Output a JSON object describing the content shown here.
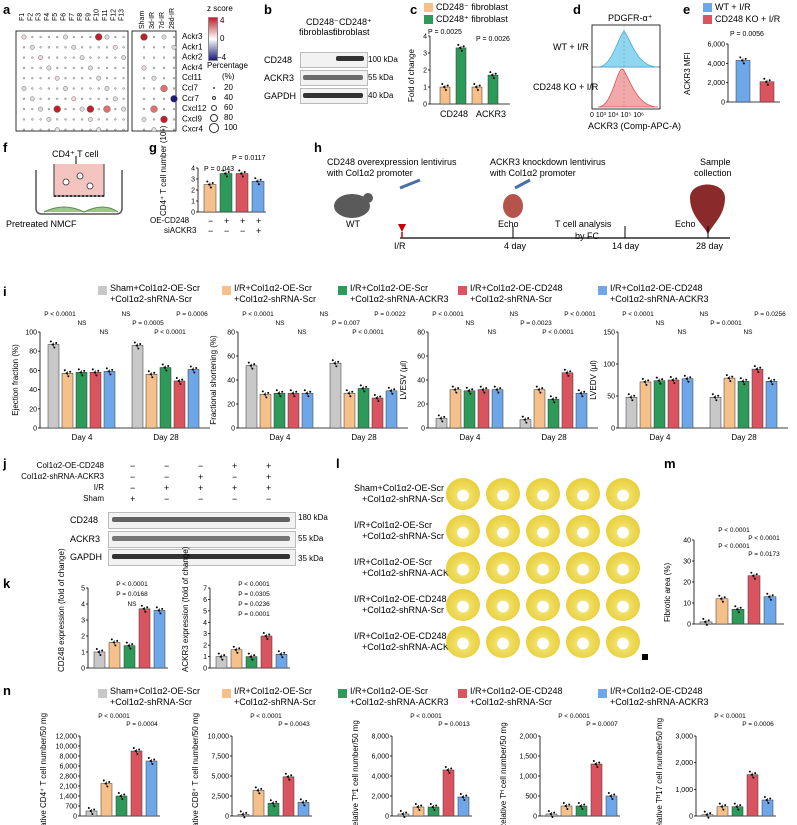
{
  "colors": {
    "grey": "#c8c8c8",
    "orange": "#f5c08a",
    "green": "#2e9a5a",
    "red": "#d9545f",
    "blue": "#6ea7e8"
  },
  "panels": {
    "a": "a",
    "b": "b",
    "c": "c",
    "d": "d",
    "e": "e",
    "f": "f",
    "g": "g",
    "h": "h",
    "i": "i",
    "j": "j",
    "k": "k",
    "l": "l",
    "m": "m",
    "n": "n"
  },
  "a": {
    "columns_left": [
      "F1",
      "F2",
      "F3",
      "F4",
      "F5",
      "F6",
      "F7",
      "F8",
      "F9",
      "F10",
      "F11",
      "F12",
      "F13"
    ],
    "columns_right": [
      "Sham",
      "3d-IR",
      "7d-IR",
      "28d-IR"
    ],
    "rows": [
      "Ackr3",
      "Ackr1",
      "Ackr2",
      "Ackr4",
      "Ccl11",
      "Ccl7",
      "Ccr7",
      "Cxcl12",
      "Cxcl9",
      "Cxcr4"
    ],
    "zscore_title": "z score",
    "zscore_max": "4",
    "zscore_mid": "0",
    "zscore_min": "−4",
    "pct_title": "Percentage",
    "pct_unit": "(%)",
    "pct_values": [
      "20",
      "40",
      "60",
      "80",
      "100"
    ]
  },
  "b": {
    "col1": "CD248⁻",
    "col1b": "fibroblast",
    "col2": "CD248⁺",
    "col2b": "fibroblast",
    "rows": [
      "CD248",
      "ACKR3",
      "GAPDH"
    ],
    "kda": [
      "100 kDa",
      "55 kDa",
      "40 kDa"
    ]
  },
  "c": {
    "legend1": "CD248⁻ fibroblast",
    "legend2": "CD248⁺ fibroblast",
    "ylabel": "Fold of change",
    "yticks": [
      "0",
      "1",
      "2",
      "3",
      "4"
    ],
    "xcats": [
      "CD248",
      "ACKR3"
    ],
    "p1": "P = 0.0025",
    "p2": "P = 0.0026",
    "chart_data": {
      "type": "bar",
      "categories": [
        "CD248",
        "ACKR3"
      ],
      "series": [
        {
          "name": "CD248⁻ fibroblast",
          "values": [
            1.0,
            1.0
          ]
        },
        {
          "name": "CD248⁺ fibroblast",
          "values": [
            3.3,
            1.7
          ]
        }
      ],
      "ylim": [
        0,
        4
      ],
      "ylabel": "Fold of change"
    }
  },
  "d": {
    "title": "PDGFR-α⁺",
    "row1": "WT + I/R",
    "row2": "CD248 KO + I/R",
    "xlabel": "ACKR3 (Comp-APC-A)",
    "xticks": "0 10³ 10⁴ 10⁵ 10⁶"
  },
  "e": {
    "legend1": "WT + I/R",
    "legend2": "CD248 KO + I/R",
    "ylabel": "ACKR3 MFI",
    "yticks": [
      "0",
      "2,000",
      "4,000",
      "6,000"
    ],
    "p": "P = 0.0056",
    "chart_data": {
      "type": "bar",
      "categories": [
        "WT + I/R",
        "CD248 KO + I/R"
      ],
      "values": [
        4300,
        2100
      ],
      "ylim": [
        0,
        6000
      ]
    }
  },
  "f": {
    "title": "CD4⁺ T cell",
    "label": "Pretreated NMCF"
  },
  "g": {
    "ylabel": "CD4⁺ T cell number (10⁵)",
    "yticks": [
      "0",
      "1",
      "2",
      "3",
      "4"
    ],
    "p1": "P = 0.043",
    "p2": "P = 0.0117",
    "row1_label": "OE-CD248",
    "row2_label": "siACKR3",
    "row1": [
      "−",
      "+",
      "+",
      "+"
    ],
    "row2": [
      "−",
      "−",
      "−",
      "+"
    ],
    "chart_data": {
      "type": "bar",
      "categories": [
        "ctrl",
        "OE-CD248",
        "OE-CD248",
        "OE-CD248+siACKR3"
      ],
      "values": [
        2.5,
        3.5,
        3.5,
        2.8
      ],
      "ylim": [
        0,
        4
      ]
    }
  },
  "h": {
    "t1": "CD248 overexpression lentivirus",
    "t1b": "with Col1α2 promoter",
    "t2": "ACKR3 knockdown lentivirus",
    "t2b": "with Col1α2 promoter",
    "t3": "Sample",
    "t3b": "collection",
    "wt": "WT",
    "ir": "I/R",
    "echo1": "Echo",
    "d4": "4 day",
    "tcell": "T cell analysis",
    "byfc": "by FC",
    "d14": "14 day",
    "echo2": "Echo",
    "d28": "28 day"
  },
  "legend": [
    "Sham+Col1α2-OE-Scr +Col1α2-shRNA-Scr",
    "I/R+Col1α2-OE-Scr +Col1α2-shRNA-Scr",
    "I/R+Col1α2-OE-Scr +Col1α2-shRNA-ACKR3",
    "I/R+Col1α2-OE-CD248 +Col1α2-shRNA-Scr",
    "I/R+Col1α2-OE-CD248 +Col1α2-shRNA-ACKR3"
  ],
  "legend_l1": [
    "Sham+Col1α2-OE-Scr",
    "I/R+Col1α2-OE-Scr",
    "I/R+Col1α2-OE-Scr",
    "I/R+Col1α2-OE-CD248",
    "I/R+Col1α2-OE-CD248"
  ],
  "legend_l2": [
    "+Col1α2-shRNA-Scr",
    "+Col1α2-shRNA-Scr",
    "+Col1α2-shRNA-ACKR3",
    "+Col1α2-shRNA-Scr",
    "+Col1α2-shRNA-ACKR3"
  ],
  "i": {
    "days": [
      "Day 4",
      "Day 28"
    ],
    "ef": {
      "ylabel": "Ejection fraction (%)",
      "yticks": [
        "0",
        "20",
        "40",
        "60",
        "80",
        "100"
      ],
      "ylim": [
        0,
        100
      ],
      "d4": [
        87,
        57,
        58,
        58,
        59
      ],
      "d28": [
        86,
        56,
        63,
        49,
        61
      ],
      "pv": [
        "P < 0.0001",
        "NS",
        "NS",
        "NS",
        "P = 0.0005",
        "P < 0.0001",
        "P = 0.0006"
      ]
    },
    "fs": {
      "ylabel": "Fractional shortening (%)",
      "yticks": [
        "0",
        "20",
        "40",
        "60",
        "80"
      ],
      "ylim": [
        0,
        80
      ],
      "d4": [
        52,
        28,
        29,
        29,
        29
      ],
      "d28": [
        54,
        29,
        33,
        25,
        31
      ],
      "pv": [
        "P < 0.0001",
        "NS",
        "NS",
        "NS",
        "P = 0.007",
        "P < 0.0001",
        "P = 0.0022"
      ]
    },
    "esv": {
      "ylabel": "LVESV (μl)",
      "yticks": [
        "0",
        "20",
        "40",
        "60",
        "80"
      ],
      "ylim": [
        0,
        80
      ],
      "d4": [
        8,
        32,
        31,
        32,
        32
      ],
      "d28": [
        7,
        32,
        24,
        46,
        29
      ],
      "pv": [
        "P < 0.0001",
        "NS",
        "NS",
        "NS",
        "P = 0.0023",
        "P < 0.0001",
        "P < 0.0001"
      ]
    },
    "edv": {
      "ylabel": "LVEDV (μl)",
      "yticks": [
        "0",
        "50",
        "100",
        "150"
      ],
      "ylim": [
        0,
        150
      ],
      "d4": [
        48,
        72,
        74,
        75,
        77
      ],
      "d28": [
        48,
        78,
        73,
        92,
        73
      ],
      "pv": [
        "P < 0.0001",
        "NS",
        "NS",
        "NS",
        "P = 0.0001",
        "NS",
        "P = 0.0256"
      ]
    }
  },
  "j": {
    "rows_top": [
      "Col1α2-OE-CD248",
      "Col1α2-shRNA-ACKR3",
      "I/R",
      "Sham"
    ],
    "signs": [
      [
        "−",
        "−",
        "−",
        "+",
        "+"
      ],
      [
        "−",
        "−",
        "+",
        "−",
        "+"
      ],
      [
        "−",
        "+",
        "+",
        "+",
        "+"
      ],
      [
        "+",
        "−",
        "−",
        "−",
        "−"
      ]
    ],
    "rows": [
      "CD248",
      "ACKR3",
      "GAPDH"
    ],
    "kda": [
      "180 kDa",
      "55 kDa",
      "35 kDa"
    ]
  },
  "k": {
    "ylabel1": "CD248 expression (fold of change)",
    "ylabel2": "ACKR3 expression (fold of change)",
    "yticks": [
      "0",
      "1",
      "2",
      "3",
      "4",
      "5"
    ],
    "yticks2": [
      "0",
      "1",
      "2",
      "3",
      "4",
      "5",
      "6",
      "7"
    ],
    "p1": [
      "P < 0.0001",
      "P = 0.0168",
      "NS"
    ],
    "p2": [
      "P < 0.0001",
      "P = 0.0305",
      "P = 0.0236",
      "P = 0.0001"
    ],
    "chart_data": [
      {
        "type": "bar",
        "categories": [
          "Sham",
          "I/R Scr",
          "shACKR3",
          "OE-CD248",
          "OE+shACKR3"
        ],
        "values": [
          1.0,
          1.6,
          1.4,
          3.7,
          3.6
        ],
        "ylim": [
          0,
          5
        ]
      },
      {
        "type": "bar",
        "categories": [
          "Sham",
          "I/R Scr",
          "shACKR3",
          "OE-CD248",
          "OE+shACKR3"
        ],
        "values": [
          1.0,
          1.6,
          1.0,
          2.8,
          1.2
        ],
        "ylim": [
          0,
          7
        ]
      }
    ]
  },
  "l": {
    "labels": [
      "Sham+Col1α2-OE-Scr",
      "+Col1α2-shRNA-Scr",
      "I/R+Col1α2-OE-Scr",
      "+Col1α2-shRNA-Scr",
      "I/R+Col1α2-OE-Scr",
      "+Col1α2-shRNA-ACKR3",
      "I/R+Col1α2-OE-CD248",
      "+Col1α2-shRNA-Scr",
      "I/R+Col1α2-OE-CD248",
      "+Col1α2-shRNA-ACKR3"
    ]
  },
  "m": {
    "ylabel": "Fibrotic area (%)",
    "yticks": [
      "0",
      "10",
      "20",
      "30",
      "40"
    ],
    "p": [
      "P < 0.0001",
      "P < 0.0001",
      "P < 0.0001",
      "P = 0.0173"
    ],
    "chart_data": {
      "type": "bar",
      "values": [
        1,
        12,
        7,
        23,
        13
      ],
      "ylim": [
        0,
        40
      ]
    }
  },
  "n": {
    "p1": [
      "P < 0.0001",
      "P = 0.0004"
    ],
    "p2": [
      "P < 0.0001",
      "P = 0.0043"
    ],
    "p3": [
      "P < 0.0001",
      "P = 0.0013"
    ],
    "p4": [
      "P < 0.0001",
      "P = 0.0007"
    ],
    "p5": [
      "P < 0.0001",
      "P = 0.0006"
    ],
    "ylabels": [
      "Relative CD4⁺ T cell number/50 mg",
      "Relative CD8⁺ T cell number/50 mg",
      "Relative Tᴴ1 cell number/50 mg",
      "Relative Tᴴ cell number/50 mg",
      "Relative Tᴴ17 cell number/50 mg"
    ],
    "yt1": [
      "0",
      "700",
      "1,400",
      "2,100",
      "2,800",
      "6,000",
      "8,000",
      "10,000",
      "12,000"
    ],
    "yt2": [
      "0",
      "2,500",
      "5,000",
      "7,500",
      "10,000"
    ],
    "yt3": [
      "0",
      "2,000",
      "4,000",
      "6,000",
      "8,000"
    ],
    "yt4": [
      "0",
      "500",
      "1,000",
      "1,500",
      "2,000"
    ],
    "yt5": [
      "0",
      "1,000",
      "2,000",
      "3,000"
    ],
    "chart_data": [
      {
        "type": "bar",
        "values": [
          200,
          1300,
          800,
          6700,
          2200
        ]
      },
      {
        "type": "bar",
        "values": [
          200,
          3200,
          1600,
          4900,
          1700
        ]
      },
      {
        "type": "bar",
        "values": [
          200,
          900,
          900,
          4600,
          1900
        ]
      },
      {
        "type": "bar",
        "values": [
          50,
          250,
          250,
          1300,
          500
        ]
      },
      {
        "type": "bar",
        "values": [
          50,
          350,
          350,
          1550,
          600
        ]
      }
    ]
  }
}
